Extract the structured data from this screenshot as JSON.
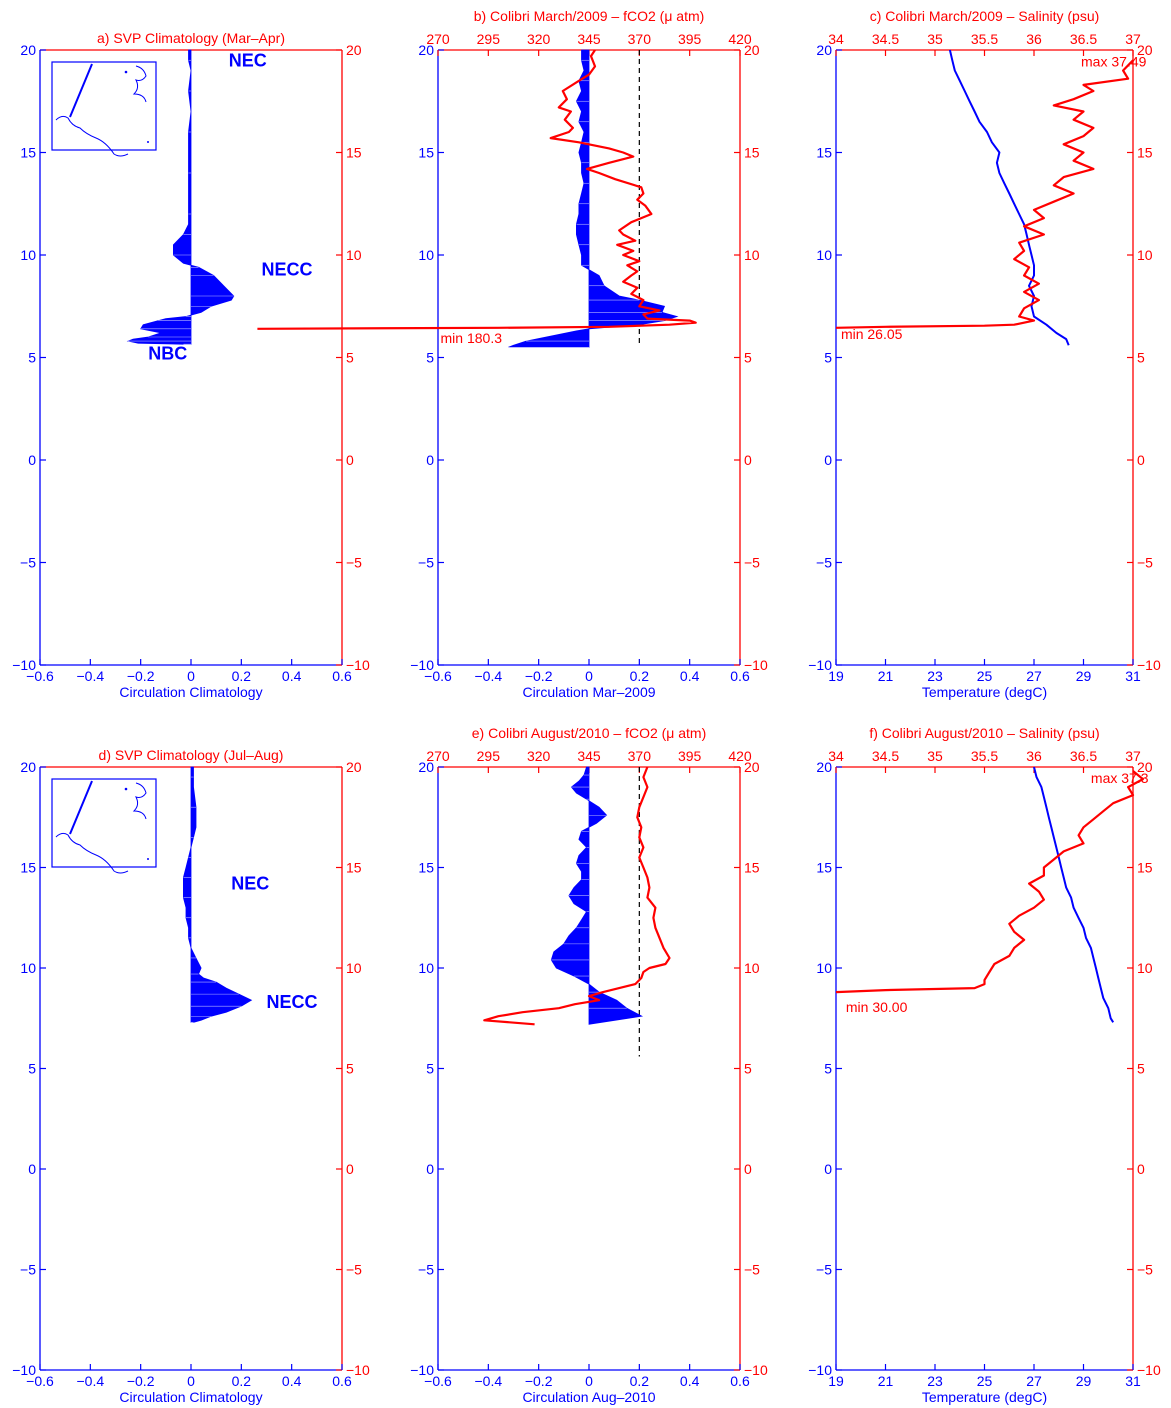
{
  "colors": {
    "blue": "#0000ff",
    "red": "#ff0000",
    "purple": "#800080",
    "black": "#000000"
  },
  "chart_data": [
    {
      "id": "a",
      "type": "area",
      "title": "a) SVP Climatology (Mar–Apr)",
      "xlabel": "Circulation Climatology",
      "xlim": [
        -0.6,
        0.6
      ],
      "xticks": [
        "−0.6",
        "−0.4",
        "−0.2",
        "0",
        "0.2",
        "0.4",
        "0.6"
      ],
      "ylim": [
        -10,
        20
      ],
      "yticks": [
        "−10",
        "−5",
        "0",
        "5",
        "10",
        "15",
        "20"
      ],
      "yticks_right": [
        "−10",
        "−5",
        "0",
        "5",
        "10",
        "15",
        "20"
      ],
      "inset_map": true,
      "annotations": [
        {
          "text": "NEC",
          "x": 0.15,
          "y": 19.2,
          "style": "bold"
        },
        {
          "text": "NECC",
          "x": 0.28,
          "y": 9.0,
          "style": "bold"
        },
        {
          "text": "NBC",
          "x": -0.17,
          "y": 4.9,
          "style": "bold"
        }
      ],
      "series": [
        {
          "kind": "blue-fill",
          "y": [
            20,
            19.5,
            19,
            18,
            17,
            16,
            15,
            14,
            13,
            12,
            11.5,
            11,
            10.5,
            10,
            9.6,
            9.4,
            9.2,
            9,
            8.5,
            8,
            7.8,
            7.5,
            7.2,
            7,
            6.9,
            6.8,
            6.6,
            6.4,
            6.2,
            6,
            5.9,
            5.8,
            5.7,
            5.65
          ],
          "x": [
            -0.01,
            -0.01,
            0,
            -0.01,
            0,
            -0.01,
            -0.01,
            -0.01,
            -0.01,
            -0.01,
            -0.01,
            -0.03,
            -0.07,
            -0.07,
            -0.03,
            0.03,
            0.06,
            0.09,
            0.13,
            0.17,
            0.16,
            0.08,
            0.04,
            -0.02,
            -0.1,
            -0.13,
            -0.19,
            -0.2,
            -0.12,
            -0.17,
            -0.23,
            -0.25,
            -0.21,
            -0.03
          ]
        }
      ]
    },
    {
      "id": "b",
      "type": "area",
      "title": "b) Colibri March/2009 – fCO2 (μ atm)",
      "xlabel": "Circulation Mar–2009",
      "xlim": [
        -0.6,
        0.6
      ],
      "xticks": [
        "−0.6",
        "−0.4",
        "−0.2",
        "0",
        "0.2",
        "0.4",
        "0.6"
      ],
      "ylim": [
        -10,
        20
      ],
      "yticks": [
        "−10",
        "−5",
        "0",
        "5",
        "10",
        "15",
        "20"
      ],
      "yticks_right": [
        "−10",
        "−5",
        "0",
        "5",
        "10",
        "15",
        "20"
      ],
      "top_axis": {
        "lim": [
          270,
          420
        ],
        "ticks": [
          "270",
          "295",
          "320",
          "345",
          "370",
          "395",
          "420"
        ]
      },
      "dashed_ref": 370,
      "annotations": [
        {
          "text": "min 180.3",
          "x": -0.59,
          "y": 5.7,
          "style": "red"
        }
      ],
      "series": [
        {
          "kind": "blue-fill",
          "y": [
            20,
            19.5,
            19,
            18.5,
            18,
            17.5,
            17,
            16.5,
            16,
            15.5,
            15,
            14.5,
            14,
            13.5,
            13,
            12.5,
            12,
            11.5,
            11,
            10.5,
            10,
            9.5,
            9,
            8.5,
            8,
            7.8,
            7.5,
            7.2,
            7,
            6.8,
            6.6,
            6.4,
            6.3,
            5.8,
            5.6,
            5.5
          ],
          "x": [
            -0.03,
            -0.03,
            -0.02,
            -0.04,
            -0.03,
            -0.05,
            -0.03,
            -0.04,
            -0.02,
            -0.03,
            -0.04,
            -0.03,
            -0.03,
            -0.02,
            -0.03,
            -0.04,
            -0.04,
            -0.05,
            -0.05,
            -0.04,
            -0.03,
            -0.03,
            0.04,
            0.06,
            0.12,
            0.2,
            0.3,
            0.29,
            0.35,
            0.3,
            0.2,
            0.0,
            -0.05,
            -0.25,
            -0.3,
            -0.32
          ]
        },
        {
          "kind": "red-line",
          "y": [
            20,
            19.7,
            19.2,
            18.8,
            18.5,
            18,
            17.6,
            17.2,
            17,
            16.6,
            16.2,
            16,
            15.7,
            15.5,
            15.2,
            15,
            14.8,
            14.5,
            14.2,
            14,
            13.7,
            13.3,
            13,
            12.7,
            12.4,
            12,
            11.6,
            11.2,
            11,
            10.7,
            10.5,
            10.2,
            10,
            9.7,
            9.5,
            9.2,
            9,
            8.7,
            8.4,
            8.1,
            7.8,
            7.5,
            7.3,
            7.1,
            6.9,
            6.8,
            6.7,
            6.6,
            6.5,
            6.45,
            6.4
          ],
          "x": [
            348,
            346,
            348,
            345,
            340,
            332,
            334,
            330,
            336,
            333,
            337,
            335,
            326,
            340,
            355,
            362,
            367,
            355,
            344,
            350,
            358,
            371,
            372,
            369,
            373,
            376,
            366,
            360,
            362,
            368,
            359,
            367,
            362,
            370,
            364,
            369,
            366,
            362,
            369,
            366,
            372,
            370,
            380,
            372,
            374,
            395,
            398,
            385,
            355,
            300,
            180.3
          ]
        }
      ]
    },
    {
      "id": "c",
      "type": "line",
      "title": "c) Colibri March/2009 – Salinity (psu)",
      "xlabel": "Temperature (degC)",
      "xlim": [
        19,
        31
      ],
      "xticks": [
        "19",
        "21",
        "23",
        "25",
        "27",
        "29",
        "31"
      ],
      "ylim": [
        -10,
        20
      ],
      "yticks": [
        "−10",
        "−5",
        "0",
        "5",
        "10",
        "15",
        "20"
      ],
      "yticks_right": [
        "−10",
        "−5",
        "0",
        "5",
        "10",
        "15",
        "20"
      ],
      "top_axis": {
        "lim": [
          34,
          37
        ],
        "ticks": [
          "34",
          "34.5",
          "35",
          "35.5",
          "36",
          "36.5",
          "37"
        ]
      },
      "annotations": [
        {
          "text": "max 37.49",
          "x": 28.9,
          "y": 19.2,
          "style": "red"
        },
        {
          "text": "min 26.05",
          "x": 19.2,
          "y": 5.9,
          "style": "red"
        }
      ],
      "series": [
        {
          "kind": "blue-line",
          "y": [
            20,
            19.5,
            19,
            18.5,
            18,
            17.5,
            17,
            16.5,
            16,
            15.5,
            15,
            14.5,
            14,
            13.5,
            13,
            12.5,
            12,
            11.5,
            11,
            10.5,
            10,
            9.5,
            9,
            8.5,
            8,
            7.5,
            7,
            6.6,
            6.2,
            5.9,
            5.6
          ],
          "x": [
            23.6,
            23.7,
            23.8,
            24.0,
            24.2,
            24.4,
            24.6,
            24.8,
            25.1,
            25.3,
            25.6,
            25.5,
            25.6,
            25.8,
            26.0,
            26.2,
            26.4,
            26.6,
            26.7,
            26.8,
            26.9,
            27.0,
            27.0,
            26.8,
            27.0,
            26.9,
            27.0,
            27.5,
            27.9,
            28.3,
            28.4
          ]
        },
        {
          "kind": "red-line",
          "y": [
            19.5,
            19.0,
            18.6,
            18.3,
            18.0,
            17.6,
            17.3,
            17.0,
            16.6,
            16.2,
            15.8,
            15.4,
            15.0,
            14.6,
            14.2,
            13.8,
            13.4,
            13.0,
            12.6,
            12.2,
            11.8,
            11.4,
            11.0,
            10.6,
            10.2,
            9.8,
            9.4,
            9.0,
            8.6,
            8.2,
            7.8,
            7.4,
            7.0,
            6.8,
            6.6,
            6.55,
            6.5,
            6.45
          ],
          "x": [
            37.0,
            36.9,
            36.95,
            36.5,
            36.6,
            36.4,
            36.2,
            36.5,
            36.4,
            36.6,
            36.5,
            36.3,
            36.5,
            36.4,
            36.6,
            36.3,
            36.2,
            36.4,
            36.2,
            36.0,
            36.1,
            35.9,
            36.1,
            35.85,
            35.9,
            35.8,
            35.95,
            35.9,
            36.05,
            35.9,
            36.05,
            35.9,
            35.85,
            36.0,
            35.8,
            35.5,
            34.5,
            34.0
          ]
        }
      ]
    },
    {
      "id": "d",
      "type": "area",
      "title": "d) SVP Climatology (Jul–Aug)",
      "xlabel": "Circulation Climatology",
      "xlim": [
        -0.6,
        0.6
      ],
      "xticks": [
        "−0.6",
        "−0.4",
        "−0.2",
        "0",
        "0.2",
        "0.4",
        "0.6"
      ],
      "ylim": [
        -10,
        20
      ],
      "yticks": [
        "−10",
        "−5",
        "0",
        "5",
        "10",
        "15",
        "20"
      ],
      "yticks_right": [
        "−10",
        "−5",
        "0",
        "5",
        "10",
        "15",
        "20"
      ],
      "inset_map": true,
      "annotations": [
        {
          "text": "NEC",
          "x": 0.16,
          "y": 13.9,
          "style": "bold"
        },
        {
          "text": "NECC",
          "x": 0.3,
          "y": 8.0,
          "style": "bold"
        }
      ],
      "series": [
        {
          "kind": "blue-fill",
          "y": [
            20,
            19.5,
            19,
            18,
            17,
            16.5,
            16,
            15.5,
            15,
            14.5,
            14,
            13.5,
            13,
            12.5,
            12,
            11.5,
            11,
            10.5,
            10,
            9.7,
            9.5,
            9.3,
            9,
            8.7,
            8.4,
            8.1,
            7.8,
            7.6,
            7.4,
            7.3
          ],
          "x": [
            0.01,
            0.01,
            0.01,
            0.02,
            0.02,
            0.01,
            0.0,
            -0.01,
            -0.02,
            -0.03,
            -0.03,
            -0.03,
            -0.02,
            -0.02,
            -0.01,
            -0.01,
            0.0,
            0.02,
            0.04,
            0.03,
            0.05,
            0.1,
            0.14,
            0.19,
            0.24,
            0.2,
            0.14,
            0.08,
            0.04,
            0.01
          ]
        }
      ]
    },
    {
      "id": "e",
      "type": "area",
      "title": "e) Colibri August/2010 – fCO2 (μ atm)",
      "xlabel": "Circulation Aug–2010",
      "xlim": [
        -0.6,
        0.6
      ],
      "xticks": [
        "−0.6",
        "−0.4",
        "−0.2",
        "0",
        "0.2",
        "0.4",
        "0.6"
      ],
      "ylim": [
        -10,
        20
      ],
      "yticks": [
        "−10",
        "−5",
        "0",
        "5",
        "10",
        "15",
        "20"
      ],
      "yticks_right": [
        "−10",
        "−5",
        "0",
        "5",
        "10",
        "15",
        "20"
      ],
      "top_axis": {
        "lim": [
          270,
          420
        ],
        "ticks": [
          "270",
          "295",
          "320",
          "345",
          "370",
          "395",
          "420"
        ]
      },
      "dashed_ref": 370,
      "annotations": [],
      "series": [
        {
          "kind": "blue-fill",
          "y": [
            20,
            19.6,
            19.3,
            19.0,
            18.7,
            18.4,
            18.0,
            17.6,
            17.2,
            16.8,
            16.4,
            16.0,
            15.6,
            15.2,
            14.8,
            14.4,
            14.0,
            13.6,
            13.2,
            12.8,
            12.4,
            12.0,
            11.6,
            11.2,
            10.8,
            10.4,
            10.0,
            9.6,
            9.2,
            8.8,
            8.4,
            8.0,
            7.6,
            7.2
          ],
          "x": [
            -0.01,
            -0.02,
            -0.04,
            -0.07,
            -0.05,
            -0.01,
            0.04,
            0.07,
            0.03,
            -0.03,
            -0.04,
            -0.01,
            -0.04,
            -0.05,
            -0.03,
            -0.03,
            -0.06,
            -0.08,
            -0.06,
            -0.01,
            -0.03,
            -0.05,
            -0.08,
            -0.1,
            -0.14,
            -0.15,
            -0.13,
            -0.06,
            0.0,
            0.04,
            0.11,
            0.15,
            0.21,
            0.0
          ]
        },
        {
          "kind": "red-line",
          "y": [
            20,
            19.5,
            19,
            18.5,
            18,
            17.5,
            17,
            16.5,
            16,
            15.5,
            15,
            14.5,
            14,
            13.5,
            13,
            12.5,
            12,
            11.5,
            11,
            10.5,
            10.2,
            10,
            9.8,
            9.5,
            9.2,
            9.0,
            8.8,
            8.6,
            8.4,
            8.2,
            8.0,
            7.8,
            7.6,
            7.4,
            7.2
          ],
          "x": [
            374,
            372,
            374,
            372,
            370,
            369,
            371,
            370,
            372,
            370,
            372,
            374,
            375,
            374,
            378,
            377,
            378,
            380,
            382,
            385,
            383,
            375,
            372,
            371,
            368,
            360,
            352,
            345,
            350,
            338,
            330,
            312,
            300,
            293,
            318
          ]
        }
      ]
    },
    {
      "id": "f",
      "type": "line",
      "title": "f) Colibri August/2010 – Salinity (psu)",
      "xlabel": "Temperature (degC)",
      "xlim": [
        19,
        31
      ],
      "xticks": [
        "19",
        "21",
        "23",
        "25",
        "27",
        "29",
        "31"
      ],
      "ylim": [
        -10,
        20
      ],
      "yticks": [
        "−10",
        "−5",
        "0",
        "5",
        "10",
        "15",
        "20"
      ],
      "yticks_right": [
        "−10",
        "−5",
        "0",
        "5",
        "10",
        "15",
        "20"
      ],
      "top_axis": {
        "lim": [
          34,
          37
        ],
        "ticks": [
          "34",
          "34.5",
          "35",
          "35.5",
          "36",
          "36.5",
          "37"
        ]
      },
      "annotations": [
        {
          "text": "max 37.3",
          "x": 29.3,
          "y": 19.2,
          "style": "red"
        },
        {
          "text": "min 30.00",
          "x": 19.4,
          "y": 7.8,
          "style": "red"
        }
      ],
      "series": [
        {
          "kind": "blue-line",
          "y": [
            20,
            19.5,
            19,
            18.5,
            18,
            17.5,
            17,
            16.5,
            16,
            15.5,
            15,
            14.5,
            14,
            13.5,
            13,
            12.5,
            12,
            11.5,
            11,
            10.5,
            10,
            9.5,
            9,
            8.5,
            8,
            7.5,
            7.3
          ],
          "x": [
            27.0,
            27.1,
            27.3,
            27.4,
            27.5,
            27.6,
            27.7,
            27.8,
            27.9,
            28.0,
            28.1,
            28.2,
            28.3,
            28.5,
            28.6,
            28.8,
            29.0,
            29.1,
            29.3,
            29.4,
            29.5,
            29.6,
            29.7,
            29.8,
            30.0,
            30.1,
            30.2
          ]
        },
        {
          "kind": "red-line",
          "y": [
            19.8,
            19.4,
            19.0,
            18.6,
            18.2,
            17.8,
            17.4,
            17.0,
            16.6,
            16.2,
            15.8,
            15.4,
            15.0,
            14.6,
            14.2,
            13.8,
            13.4,
            13.0,
            12.6,
            12.2,
            11.8,
            11.4,
            11.0,
            10.6,
            10.2,
            9.8,
            9.4,
            9.2,
            9.0,
            8.9,
            8.8
          ],
          "x": [
            37.0,
            37.1,
            36.95,
            37.0,
            36.8,
            36.7,
            36.6,
            36.5,
            36.45,
            36.5,
            36.3,
            36.2,
            36.1,
            36.1,
            35.95,
            36.05,
            36.1,
            36.0,
            35.85,
            35.75,
            35.8,
            35.9,
            35.8,
            35.75,
            35.6,
            35.55,
            35.5,
            35.5,
            35.4,
            34.5,
            34.0
          ]
        }
      ]
    }
  ]
}
